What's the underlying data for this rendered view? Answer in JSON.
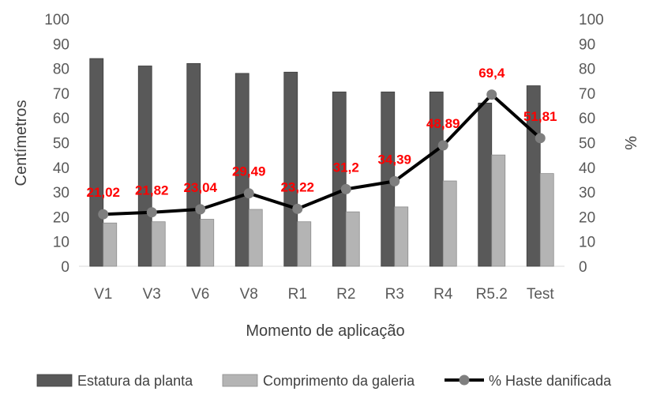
{
  "chart_data": {
    "type": "bar",
    "categories": [
      "V1",
      "V3",
      "V6",
      "V8",
      "R1",
      "R2",
      "R3",
      "R4",
      "R5.2",
      "Test"
    ],
    "series": [
      {
        "name": "Estatura da planta",
        "kind": "bar",
        "axis": "left",
        "color": "#595959",
        "values": [
          84,
          81,
          82,
          78,
          78.5,
          70.5,
          70.5,
          70.5,
          66,
          73
        ]
      },
      {
        "name": "Comprimento da galeria",
        "kind": "bar",
        "axis": "left",
        "color": "#b4b4b4",
        "values": [
          17.5,
          18,
          19,
          23,
          18,
          22,
          24,
          34.5,
          45,
          37.5
        ]
      },
      {
        "name": "% Haste danificada",
        "kind": "line",
        "axis": "right",
        "color": "#000000",
        "marker_color": "#7f7f7f",
        "values": [
          21.02,
          21.82,
          23.04,
          29.49,
          23.22,
          31.2,
          34.39,
          48.89,
          69.4,
          51.81
        ],
        "labels": [
          "21,02",
          "21,82",
          "23,04",
          "29,49",
          "23,22",
          "31,2",
          "34,39",
          "48,89",
          "69,4",
          "51,81"
        ],
        "label_color": "#ff0000"
      }
    ],
    "xlabel": "Momento de aplicação",
    "ylabel": "Centímetros",
    "y2label": "%",
    "ylim": [
      0,
      100
    ],
    "y2lim": [
      0,
      100
    ],
    "yticks": [
      "0",
      "10",
      "20",
      "30",
      "40",
      "50",
      "60",
      "70",
      "80",
      "90",
      "100"
    ],
    "y2ticks": [
      "0",
      "10",
      "20",
      "30",
      "40",
      "50",
      "60",
      "70",
      "80",
      "90",
      "100"
    ],
    "grid": false,
    "legend_position": "bottom"
  }
}
